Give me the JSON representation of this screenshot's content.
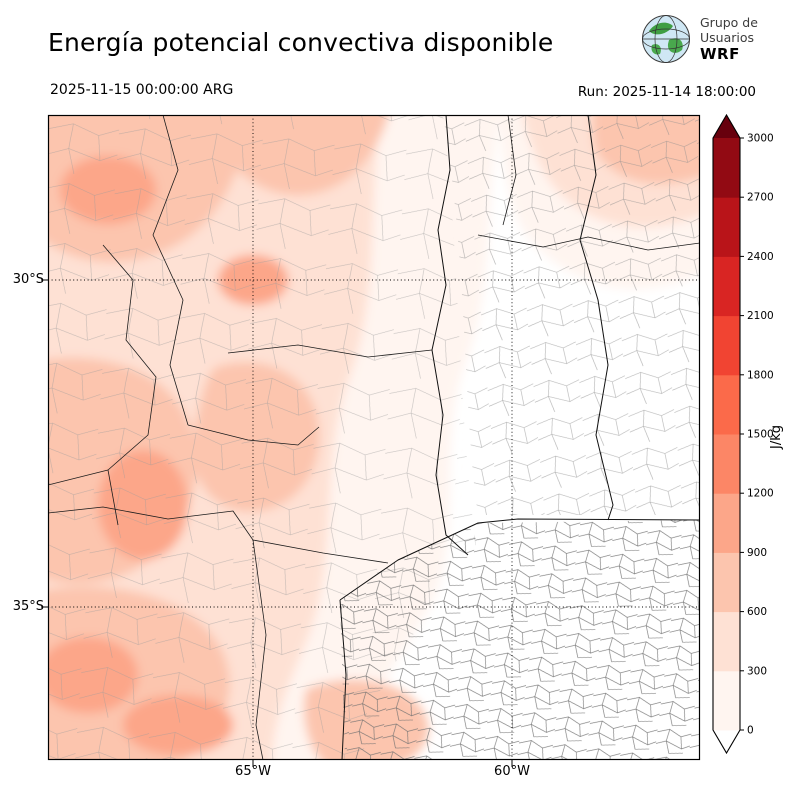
{
  "header": {
    "title": "Energía potencial convectiva disponible",
    "valid_time": "2025-11-15 00:00:00 ARG",
    "run_label": "Run: 2025-11-14 18:00:00"
  },
  "logo": {
    "line1": "Grupo de",
    "line2": "Usuarios",
    "line3": "WRF",
    "icon": "globe-icon"
  },
  "chart_data": {
    "type": "heatmap",
    "title": "Energía potencial convectiva disponible",
    "unit": "J/kg",
    "valid_time": "2025-11-15 00:00:00 ARG",
    "model_run": "Run: 2025-11-14 18:00:00",
    "x_tick_labels": [
      "65°W",
      "60°W"
    ],
    "y_tick_labels": [
      "30°S",
      "35°S"
    ],
    "grid": "dotted latitude/longitude lines at 30°S, 35°S, 65°W, 60°W",
    "legend_position": "vertical colorbar on right",
    "colorbar": {
      "label": "J/kg",
      "orientation": "vertical-right",
      "extend": "both",
      "levels": [
        0,
        300,
        600,
        900,
        1200,
        1500,
        1800,
        2100,
        2400,
        2700,
        3000
      ],
      "colors": [
        "#fff5f0",
        "#fee1d4",
        "#fcc5ae",
        "#fca689",
        "#fc8666",
        "#fb6a4a",
        "#f14432",
        "#d92523",
        "#b91419",
        "#920a13"
      ],
      "over_color": "#67000d",
      "under_color": "#ffffff"
    },
    "field_summary": [
      {
        "region": "west and northwest of map",
        "cape_jkg": "300-900"
      },
      {
        "region": "northern band across top of map",
        "cape_jkg": "150-600"
      },
      {
        "region": "northeast corner",
        "cape_jkg": "300-600"
      },
      {
        "region": "center of map",
        "cape_jkg": "0-300"
      },
      {
        "region": "east / southeast (dense department mesh area)",
        "cape_jkg": "0"
      },
      {
        "region": "south-center near bottom edge",
        "cape_jkg": "150-600"
      }
    ]
  }
}
